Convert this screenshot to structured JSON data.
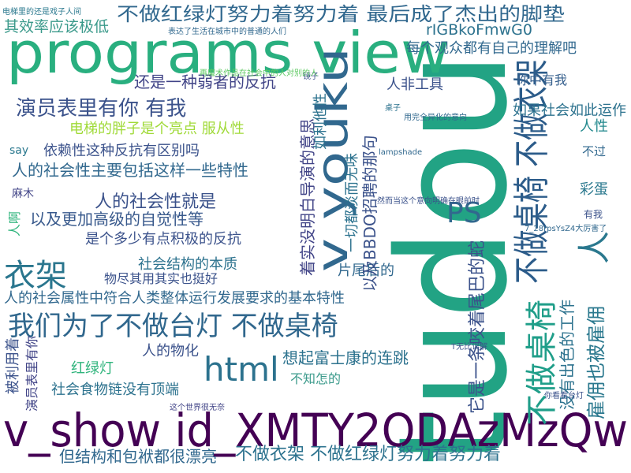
{
  "words": [
    "tudou",
    "programs view",
    "v_show id_XMTY2ODAzMzQw",
    "不做红绿灯努力着努力着 最后成了杰出的脚垫",
    "其效率应该极低",
    "rIGBkoFmwG0",
    "每个观众都有自己的理解吧",
    "v youku",
    "不做桌椅 不做衣架",
    "人",
    "不做桌椅",
    "雇佣也被雇佣",
    "没有出色的工作",
    "它是一条咬着尾巴的蛇",
    "PS",
    "衣架",
    "我们为了不做台灯 不做桌椅",
    "html",
    "演员表里有你 有我",
    "还是一种弱者的反抗",
    "人非工具",
    "你中有我",
    "如果社会如此运作",
    "人性",
    "不过",
    "彩蛋",
    "有我",
    "电梯的胖子是个亮点 服从性",
    "依赖性这种反抗有区别吗",
    "say",
    "人的社会性主要包括这样一些特性",
    "麻木",
    "人的社会性就是",
    "以及更加高级的自觉性等",
    "是个多少有点积极的反抗",
    "人啊",
    "社会结构的本质",
    "物尽其用其实也挺好",
    "人的社会属性中符合人类整体运行发展要求的基本特性",
    "片尾后的",
    "一切都淡而无味",
    "以及BBDO招聘的那句",
    "着实没明白导演的意思",
    "如利他性",
    "想起富士康的连跳",
    "人的物化",
    "红绿灯",
    "社会食物链没有顶端",
    "不知怎的",
    "被利用着",
    "演员表里有你",
    "但结构和包袱都很漂亮",
    "不做衣架 不做红绿灯努力着努力着",
    "7_28rpsYsZ4大厉害了",
    "T无比误解",
    "你看看台灯",
    "电梯里的还是戏子人间",
    "表达了生活在城市中的普通的人们",
    "这个世界很无奈",
    "镜子",
    "桌子",
    "lampshade",
    "然而当这个意向明确在眼前时",
    "用完全异化的意向",
    "再魔术作品在社会中的人对别的人"
  ]
}
